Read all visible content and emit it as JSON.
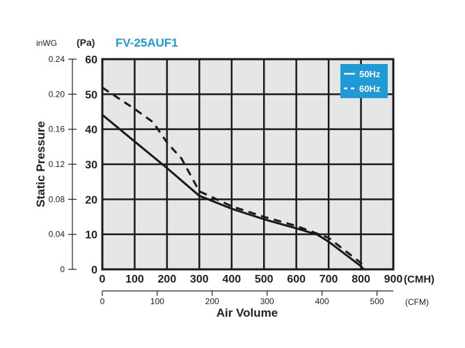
{
  "chart_data": {
    "type": "line",
    "title": "FV-25AUF1",
    "xlabel": "Air Volume",
    "ylabel": "Static Pressure",
    "x_unit": "(CMH)",
    "x2_unit": "(CFM)",
    "y_unit": "(Pa)",
    "y2_unit": "inWG",
    "xlim": [
      0,
      900
    ],
    "ylim": [
      0,
      60
    ],
    "x_ticks": [
      "0",
      "100",
      "200",
      "300",
      "400",
      "500",
      "600",
      "700",
      "800",
      "900"
    ],
    "x2_ticks": [
      "0",
      "100",
      "200",
      "300",
      "400",
      "500"
    ],
    "y_ticks": [
      "0",
      "10",
      "20",
      "30",
      "40",
      "50",
      "60"
    ],
    "y2_ticks": [
      "0",
      "0.04",
      "0.08",
      "0.12",
      "0.16",
      "0.20",
      "0.24"
    ],
    "grid": true,
    "legend": "top-right",
    "colors": {
      "legend_bg": "#1e9ad6",
      "title": "#1e9ad6",
      "plot_bg": "#e6e6e6",
      "line": "#1a1a1a"
    },
    "series": [
      {
        "name": "50Hz",
        "style": "solid",
        "x": [
          0,
          100,
          200,
          300,
          400,
          500,
          600,
          665,
          700,
          800,
          808
        ],
        "y": [
          44.1,
          36.5,
          28.9,
          21,
          17.3,
          14.3,
          11.7,
          9.9,
          7.9,
          0.9,
          0
        ]
      },
      {
        "name": "60Hz",
        "style": "dashed",
        "x": [
          0,
          100,
          157,
          200,
          245,
          300,
          400,
          500,
          600,
          700,
          800,
          815
        ],
        "y": [
          51.9,
          45.8,
          42,
          36.2,
          31.6,
          22.3,
          18,
          15,
          12.4,
          9,
          1.8,
          0
        ]
      }
    ]
  }
}
